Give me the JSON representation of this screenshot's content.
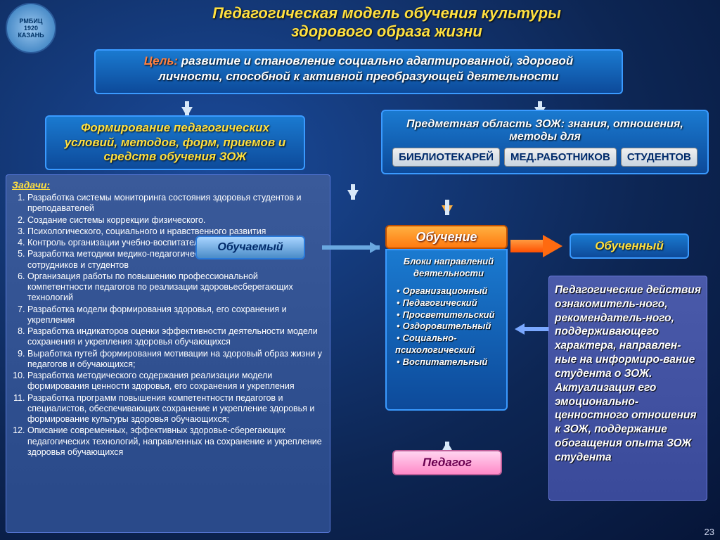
{
  "logo": {
    "line1": "РМБИЦ",
    "line2": "1920",
    "line3": "КАЗАНЬ"
  },
  "title": "Педагогическая модель обучения культуры здорового образа жизни",
  "goal": {
    "label": "Цель:",
    "text": " развитие и становление социально адаптированной, здоровой личности, способной к активной преобразующей деятельности"
  },
  "formation": "Формирование педагогических условий, методов, форм, приемов и средств обучения ЗОЖ",
  "subject": {
    "head": "Предметная область ЗОЖ: знания, отношения, методы для",
    "pills": [
      "библиотекарей",
      "мед.работников",
      "студентов"
    ]
  },
  "tasks": {
    "header": "Задачи:",
    "items": [
      "Разработка системы мониторинга состояния здоровья студентов и преподавателей",
      "Создание системы коррекции физического.",
      "Психологического, социального и нравственного развития",
      "Контроль организации учебно-воспитательного процесса",
      "Разработка методики медико-педагогического сопровождения сотрудников и студентов",
      "Организация работы по повышению профессиональной компетентности педагогов по реализации здоровьесберегающих технологий",
      "Разработка модели формирования здоровья, его сохранения и укрепления",
      "Разработка индикаторов оценки эффективности деятельности модели сохранения и укрепления здоровья обучающихся",
      "Выработка путей формирования мотивации на здоровый образ жизни у педагогов и обучающихся;",
      "Разработка методического содержания реализации модели формирования ценности здоровья, его сохранения и укрепления",
      "Разработка программ повышения компетентности педагогов и специалистов, обеспечивающих сохранение и укрепление здоровья и формирование культуры здоровья обучающихся;",
      "Описание современных, эффективных здоровье-сберегающих педагогических технологий, направленных на сохранение и укрепление здоровья обучающихся"
    ]
  },
  "learner": "Обучаемый",
  "learning": {
    "title": "Обучение",
    "sub": "Блоки направлений деятельности",
    "items": [
      "Организационный",
      "Педагогический",
      "Просветительский",
      "Оздоровительный",
      "Социально-психологический",
      "Воспитательный"
    ]
  },
  "learned": "Обученный",
  "teacher": "Педагог",
  "ped_actions": "Педагогические действия ознакомитель-ного, рекомендатель-ного, поддерживающего характера, направлен-ные на информиро-вание студента о ЗОЖ. Актуализация его эмоционально-ценностного отношения к ЗОЖ, поддержание обогащения опыта ЗОЖ студента",
  "slide": "23",
  "colors": {
    "bg": "#0d2654",
    "accent": "#ffe040",
    "panel": "#1a7ad0",
    "orange": "#ff7a10"
  }
}
